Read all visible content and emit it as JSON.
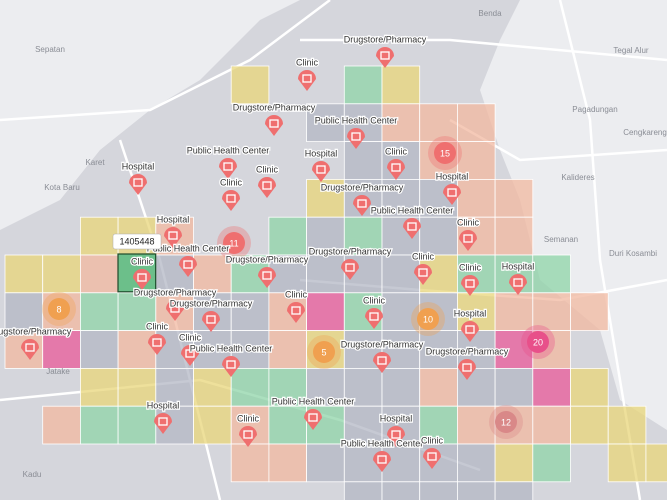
{
  "map": {
    "places": [
      "Sepatan",
      "Benda",
      "Tegal Alur",
      "Pagadungan",
      "Cengkareng",
      "Kalideres",
      "Karet",
      "Kota Baru",
      "Semanan",
      "Duri Kosambi",
      "Jatake",
      "Kadu"
    ],
    "pois": [
      {
        "type": "pharmacy",
        "label": "Drugstore/Pharmacy"
      },
      {
        "type": "clinic",
        "label": "Clinic"
      },
      {
        "type": "pharmacy",
        "label": "Drugstore/Pharmacy"
      },
      {
        "type": "health",
        "label": "Public Health Center"
      },
      {
        "type": "health",
        "label": "Public Health Center"
      },
      {
        "type": "hospital",
        "label": "Hospital"
      },
      {
        "type": "hospital",
        "label": "Hospital"
      },
      {
        "type": "clinic",
        "label": "Clinic"
      },
      {
        "type": "clinic",
        "label": "Clinic"
      },
      {
        "type": "clinic",
        "label": "Clinic"
      },
      {
        "type": "pharmacy",
        "label": "Drugstore/Pharmacy"
      },
      {
        "type": "hospital",
        "label": "Hospital"
      },
      {
        "type": "health",
        "label": "Public Health Center"
      },
      {
        "type": "clinic",
        "label": "Clinic"
      },
      {
        "type": "hospital",
        "label": "Hospital"
      },
      {
        "type": "health",
        "label": "Public Health Center"
      },
      {
        "type": "pharmacy",
        "label": "Drugstore/Pharmacy"
      },
      {
        "type": "pharmacy",
        "label": "Drugstore/Pharmacy"
      },
      {
        "type": "clinic",
        "label": "Clinic"
      },
      {
        "type": "clinic",
        "label": "Clinic"
      },
      {
        "type": "hospital",
        "label": "Hospital"
      },
      {
        "type": "clinic",
        "label": "Clinic"
      },
      {
        "type": "pharmacy",
        "label": "Drugstore/Pharmacy"
      },
      {
        "type": "pharmacy",
        "label": "Drugstore/Pharmacy"
      },
      {
        "type": "clinic",
        "label": "Clinic"
      },
      {
        "type": "clinic",
        "label": "Clinic"
      },
      {
        "type": "hospital",
        "label": "Hospital"
      },
      {
        "type": "pharmacy",
        "label": "Drugstore/Pharmacy"
      },
      {
        "type": "clinic",
        "label": "Clinic"
      },
      {
        "type": "clinic",
        "label": "Clinic"
      },
      {
        "type": "health",
        "label": "Public Health Center"
      },
      {
        "type": "pharmacy",
        "label": "Drugstore/Pharmacy"
      },
      {
        "type": "pharmacy",
        "label": "Drugstore/Pharmacy"
      },
      {
        "type": "health",
        "label": "Public Health Center"
      },
      {
        "type": "hospital",
        "label": "Hospital"
      },
      {
        "type": "clinic",
        "label": "Clinic"
      },
      {
        "type": "hospital",
        "label": "Hospital"
      },
      {
        "type": "health",
        "label": "Public Health Center"
      },
      {
        "type": "clinic",
        "label": "Clinic"
      }
    ],
    "clusters": [
      15,
      11,
      8,
      10,
      5,
      20,
      12
    ],
    "tooltip": "1405448"
  }
}
